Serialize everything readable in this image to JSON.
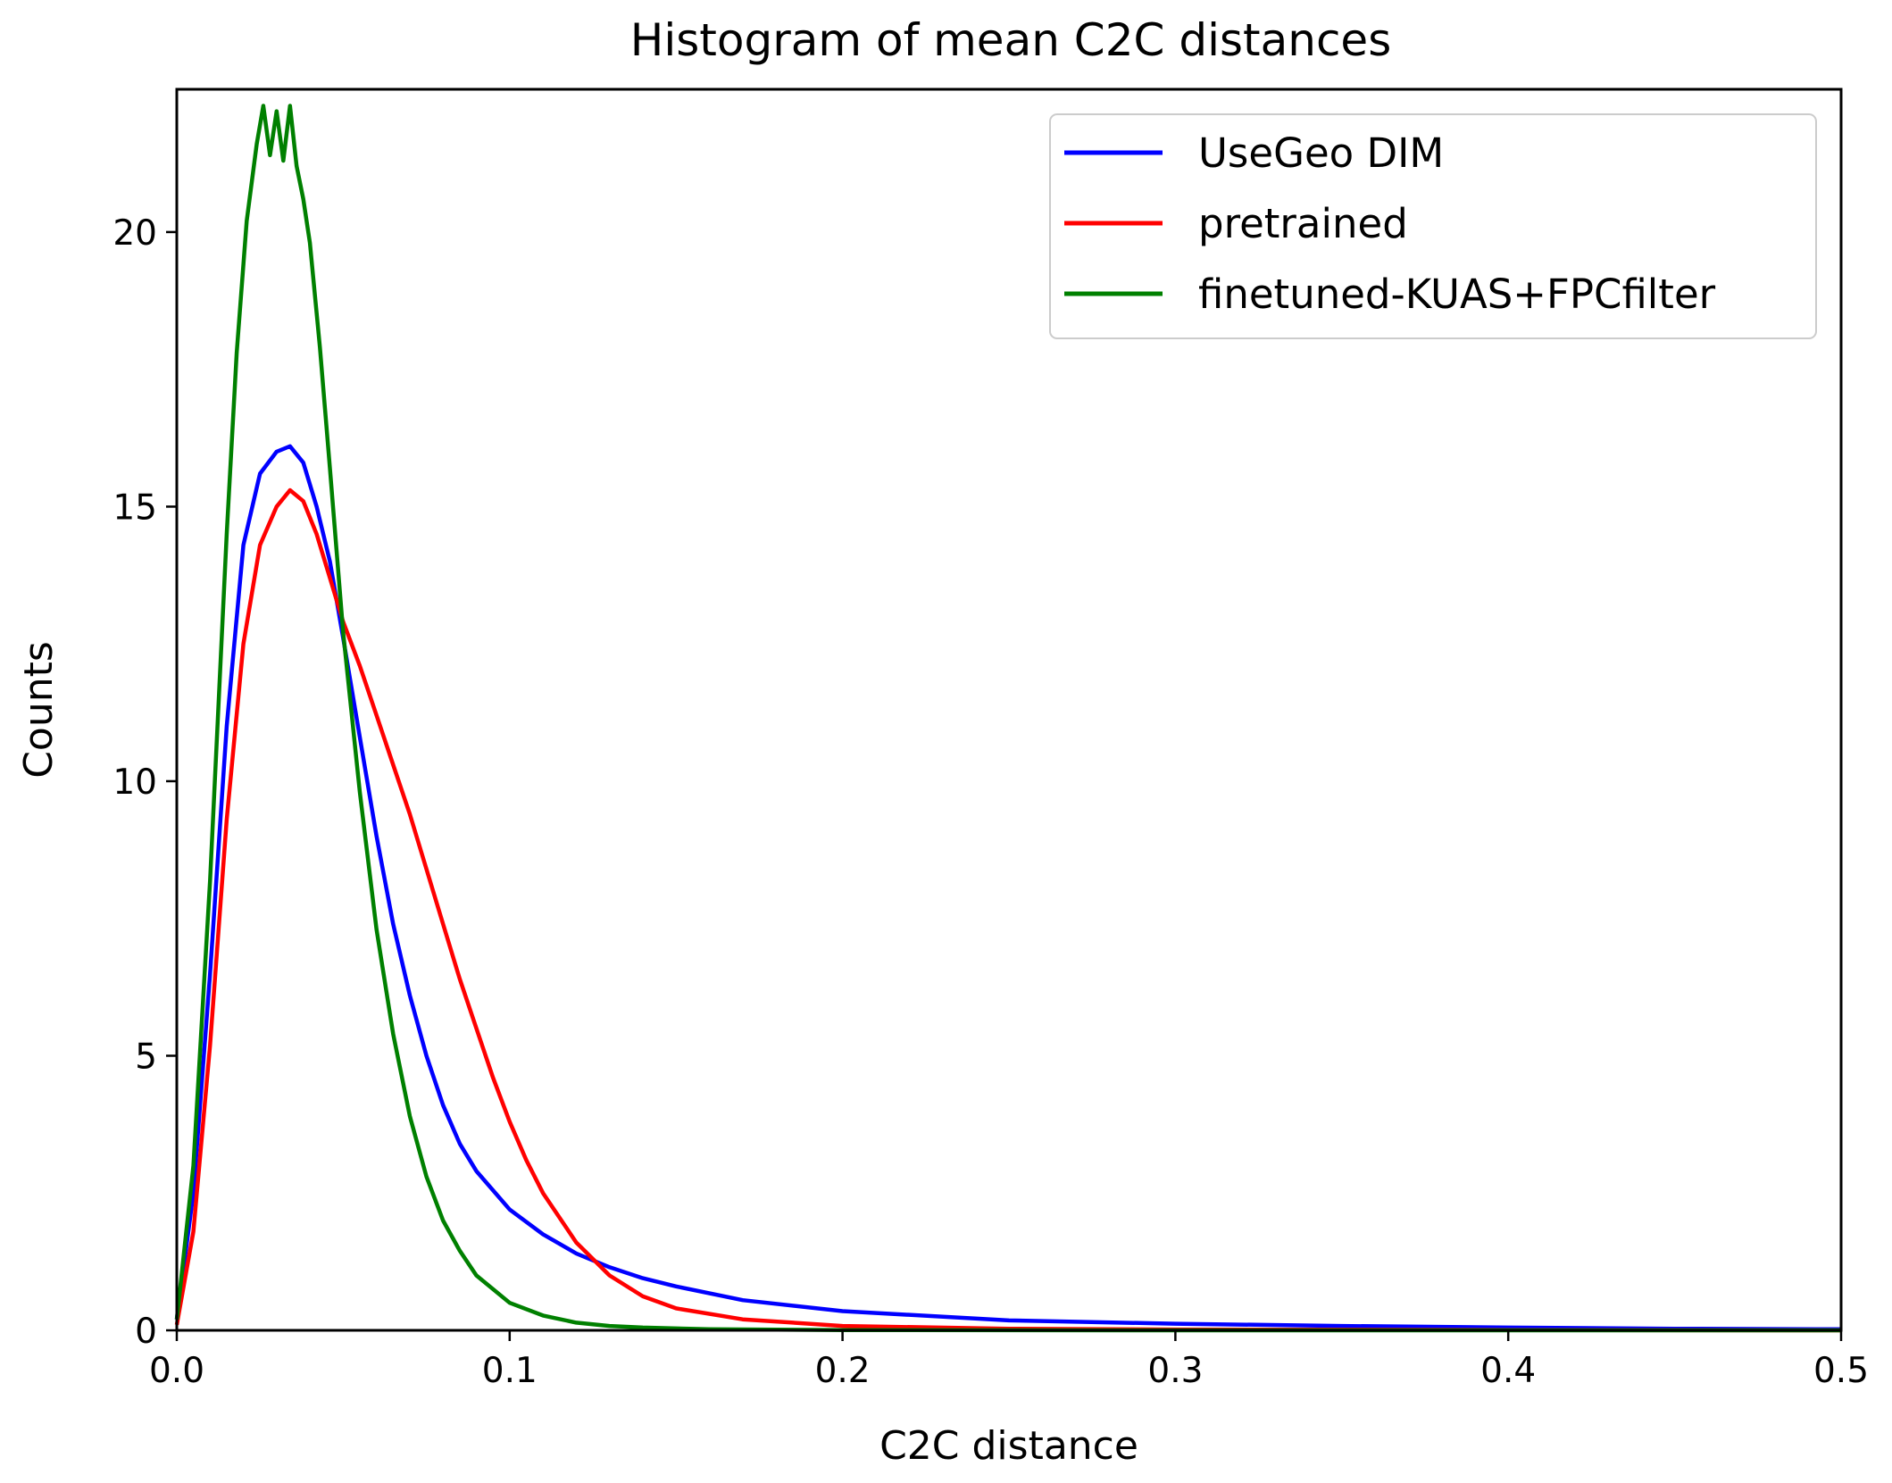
{
  "chart_data": {
    "type": "line",
    "title": "Histogram of mean C2C distances",
    "xlabel": "C2C distance",
    "ylabel": "Counts",
    "xlim": [
      0.0,
      0.5
    ],
    "ylim": [
      0,
      22.6
    ],
    "xticks": [
      0.0,
      0.1,
      0.2,
      0.3,
      0.4,
      0.5
    ],
    "xtick_labels": [
      "0.0",
      "0.1",
      "0.2",
      "0.3",
      "0.4",
      "0.5"
    ],
    "yticks": [
      0,
      5,
      10,
      15,
      20
    ],
    "ytick_labels": [
      "0",
      "5",
      "10",
      "15",
      "20"
    ],
    "grid": false,
    "legend_position": "top-right",
    "series": [
      {
        "name": "UseGeo DIM",
        "color": "#0000ff",
        "x": [
          0.0,
          0.005,
          0.01,
          0.015,
          0.02,
          0.025,
          0.03,
          0.034,
          0.038,
          0.042,
          0.046,
          0.05,
          0.055,
          0.06,
          0.065,
          0.07,
          0.075,
          0.08,
          0.085,
          0.09,
          0.1,
          0.11,
          0.12,
          0.13,
          0.14,
          0.15,
          0.17,
          0.2,
          0.25,
          0.3,
          0.35,
          0.4,
          0.45,
          0.5
        ],
        "y": [
          0.2,
          2.5,
          6.5,
          11.0,
          14.3,
          15.6,
          16.0,
          16.1,
          15.8,
          15.0,
          14.0,
          12.6,
          10.8,
          9.0,
          7.4,
          6.1,
          5.0,
          4.1,
          3.4,
          2.9,
          2.2,
          1.75,
          1.4,
          1.15,
          0.95,
          0.8,
          0.55,
          0.35,
          0.18,
          0.12,
          0.08,
          0.05,
          0.03,
          0.02
        ]
      },
      {
        "name": "pretrained",
        "color": "#ff0000",
        "x": [
          0.0,
          0.005,
          0.01,
          0.015,
          0.02,
          0.025,
          0.03,
          0.034,
          0.038,
          0.042,
          0.046,
          0.05,
          0.055,
          0.06,
          0.065,
          0.07,
          0.075,
          0.08,
          0.085,
          0.09,
          0.095,
          0.1,
          0.105,
          0.11,
          0.12,
          0.13,
          0.14,
          0.15,
          0.17,
          0.2,
          0.25,
          0.3,
          0.4,
          0.5
        ],
        "y": [
          0.1,
          1.8,
          5.2,
          9.3,
          12.5,
          14.3,
          15.0,
          15.3,
          15.1,
          14.5,
          13.7,
          12.9,
          12.1,
          11.2,
          10.3,
          9.4,
          8.4,
          7.4,
          6.4,
          5.5,
          4.6,
          3.8,
          3.1,
          2.5,
          1.6,
          1.0,
          0.62,
          0.4,
          0.2,
          0.08,
          0.03,
          0.015,
          0.005,
          0.0
        ]
      },
      {
        "name": "finetuned-KUAS+FPCfilter",
        "color": "#008000",
        "x": [
          0.0,
          0.005,
          0.01,
          0.015,
          0.018,
          0.021,
          0.024,
          0.026,
          0.028,
          0.03,
          0.032,
          0.034,
          0.036,
          0.038,
          0.04,
          0.043,
          0.046,
          0.05,
          0.055,
          0.06,
          0.065,
          0.07,
          0.075,
          0.08,
          0.085,
          0.09,
          0.1,
          0.11,
          0.12,
          0.13,
          0.14,
          0.16,
          0.2,
          0.3,
          0.5
        ],
        "y": [
          0.2,
          3.0,
          8.2,
          14.5,
          17.8,
          20.2,
          21.6,
          22.3,
          21.4,
          22.2,
          21.3,
          22.3,
          21.2,
          20.6,
          19.8,
          17.9,
          15.7,
          12.7,
          9.8,
          7.3,
          5.4,
          3.9,
          2.8,
          2.0,
          1.45,
          1.0,
          0.5,
          0.27,
          0.14,
          0.08,
          0.05,
          0.02,
          0.005,
          0.0,
          0.0
        ]
      }
    ]
  }
}
